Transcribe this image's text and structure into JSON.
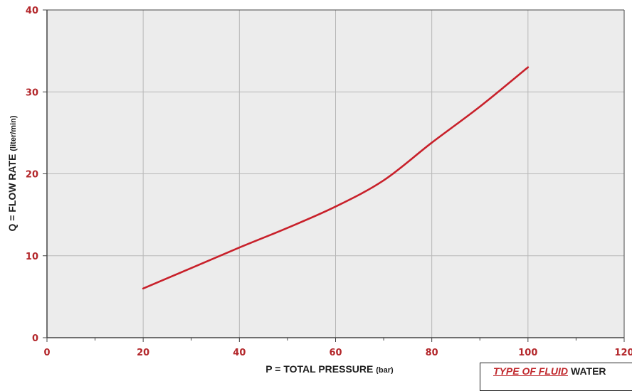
{
  "chart_data": {
    "type": "line",
    "title": "",
    "xlabel_main": "P = TOTAL PRESSURE",
    "xlabel_unit": "(bar)",
    "ylabel_main": "Q = FLOW RATE",
    "ylabel_unit": "(liter/min)",
    "xlim": [
      0,
      120
    ],
    "ylim": [
      0,
      40
    ],
    "x_ticks": [
      0,
      20,
      40,
      60,
      80,
      100,
      120
    ],
    "y_ticks": [
      0,
      10,
      20,
      30,
      40
    ],
    "grid": true,
    "series": [
      {
        "x": [
          20,
          30,
          40,
          50,
          60,
          70,
          80,
          90,
          100
        ],
        "y": [
          6,
          8.5,
          11,
          13.4,
          16,
          19.2,
          23.8,
          28.2,
          33
        ]
      }
    ]
  },
  "fluid_box": {
    "key": "TYPE OF FLUID",
    "value": "WATER"
  },
  "colors": {
    "line": "#c8202a",
    "tick_label": "#b3262a",
    "plot_bg": "#ececec",
    "grid": "#b8b8b8",
    "axis": "#444444"
  }
}
